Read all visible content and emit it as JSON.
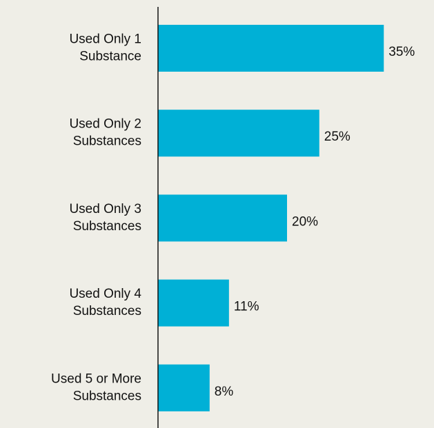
{
  "chart_data": {
    "type": "bar",
    "orientation": "horizontal",
    "categories": [
      [
        "Used Only 1",
        "Substance"
      ],
      [
        "Used Only 2",
        "Substances"
      ],
      [
        "Used Only 3",
        "Substances"
      ],
      [
        "Used Only 4",
        "Substances"
      ],
      [
        "Used 5 or More",
        "Substances"
      ]
    ],
    "values": [
      35,
      25,
      20,
      11,
      8
    ],
    "value_labels": [
      "35%",
      "25%",
      "20%",
      "11%",
      "8%"
    ],
    "color": "#00b0d6"
  }
}
